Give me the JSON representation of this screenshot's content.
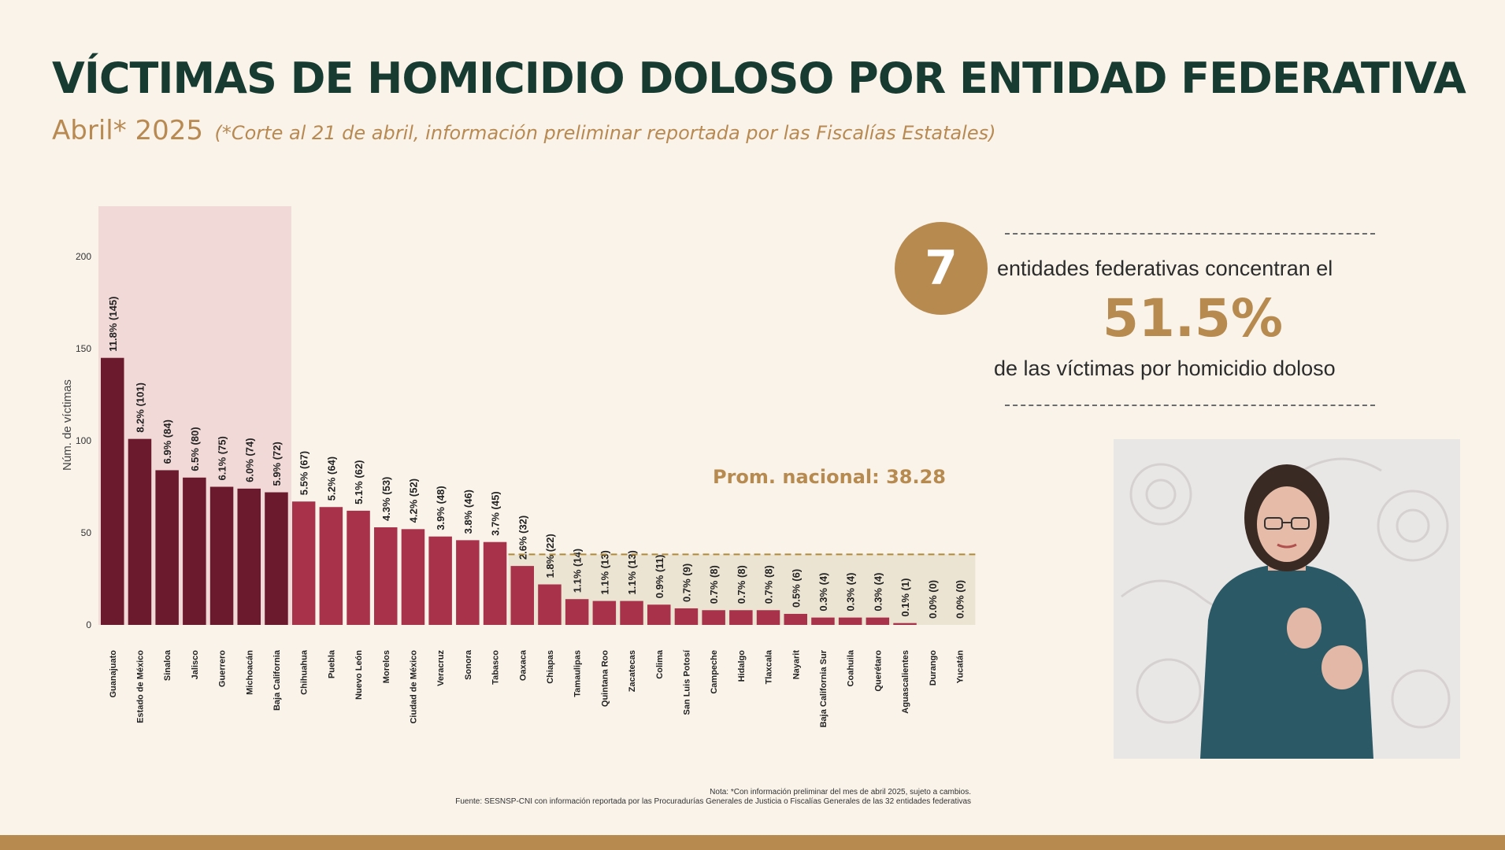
{
  "title": "VÍCTIMAS DE HOMICIDIO DOLOSO POR ENTIDAD FEDERATIVA",
  "subtitle": "Abril* 2025",
  "subtitle_note": "(*Corte al 21 de abril, información preliminar reportada por las Fiscalías Estatales)",
  "colors": {
    "title": "#173b30",
    "accent_gold": "#b78a50",
    "top7_bar": "#6b1a2e",
    "other_bar": "#a8324a",
    "highlight_band": "#f1d9d7",
    "below_average_band": "#ece4d3"
  },
  "chart_data": {
    "type": "bar",
    "ylabel": "Núm. de víctimas",
    "xlabel": "",
    "ylim": [
      0,
      200
    ],
    "yticks": [
      0,
      50,
      100,
      150,
      200
    ],
    "grid": false,
    "categories": [
      "Guanajuato",
      "Estado de México",
      "Sinaloa",
      "Jalisco",
      "Guerrero",
      "Michoacán",
      "Baja California",
      "Chihuahua",
      "Puebla",
      "Nuevo León",
      "Morelos",
      "Ciudad de México",
      "Veracruz",
      "Sonora",
      "Tabasco",
      "Oaxaca",
      "Chiapas",
      "Tamaulipas",
      "Quintana Roo",
      "Zacatecas",
      "Colima",
      "San Luis Potosí",
      "Campeche",
      "Hidalgo",
      "Tlaxcala",
      "Nayarit",
      "Baja California Sur",
      "Coahuila",
      "Querétaro",
      "Aguascalientes",
      "Durango",
      "Yucatán"
    ],
    "values": [
      145,
      101,
      84,
      80,
      75,
      74,
      72,
      67,
      64,
      62,
      53,
      52,
      48,
      46,
      45,
      32,
      22,
      14,
      13,
      13,
      11,
      9,
      8,
      8,
      8,
      6,
      4,
      4,
      4,
      1,
      0,
      0
    ],
    "labels": [
      "11.8% (145)",
      "8.2% (101)",
      "6.9% (84)",
      "6.5% (80)",
      "6.1% (75)",
      "6.0% (74)",
      "5.9% (72)",
      "5.5% (67)",
      "5.2% (64)",
      "5.1% (62)",
      "4.3% (53)",
      "4.2% (52)",
      "3.9% (48)",
      "3.8% (46)",
      "3.7% (45)",
      "2.6% (32)",
      "1.8% (22)",
      "1.1% (14)",
      "1.1% (13)",
      "1.1% (13)",
      "0.9% (11)",
      "0.7% (9)",
      "0.7% (8)",
      "0.7% (8)",
      "0.7% (8)",
      "0.5% (6)",
      "0.3% (4)",
      "0.3% (4)",
      "0.3% (4)",
      "0.1% (1)",
      "0.0% (0)",
      "0.0% (0)"
    ],
    "highlighted_count": 7,
    "average": 38.28,
    "average_label": "Prom. nacional: 38.28"
  },
  "summary": {
    "count": "7",
    "line1": "entidades federativas concentran el",
    "percent": "51.5%",
    "line2": "de las víctimas por homicidio doloso"
  },
  "footnotes": {
    "note": "Nota: *Con información preliminar del mes de abril 2025, sujeto a cambios.",
    "source": "Fuente: SESNSP-CNI con información reportada por las Procuradurías Generales de Justicia o Fiscalías Generales de las 32 entidades federativas"
  }
}
